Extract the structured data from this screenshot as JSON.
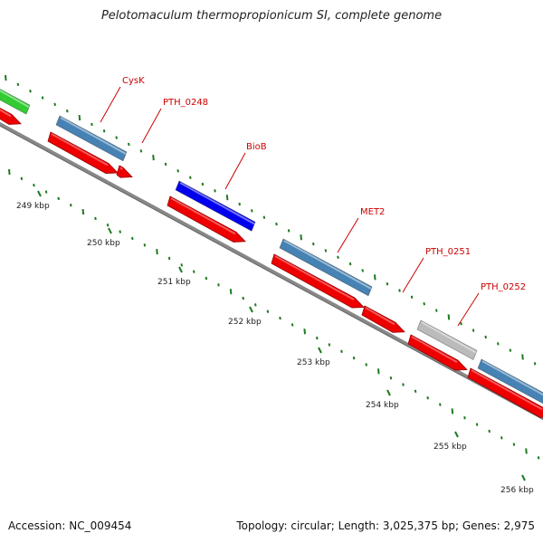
{
  "header": {
    "title": "Pelotomaculum thermopropionicum SI, complete genome"
  },
  "footer": {
    "accession": "Accession: NC_009454",
    "summary": "Topology: circular; Length: 3,025,375 bp; Genes: 2,975"
  },
  "ticks": [
    "249 kbp",
    "250 kbp",
    "251 kbp",
    "252 kbp",
    "253 kbp",
    "254 kbp",
    "255 kbp",
    "256 kbp"
  ],
  "genes": [
    {
      "label": "CysK",
      "color": "#cc0000"
    },
    {
      "label": "PTH_0248",
      "color": "#cc0000"
    },
    {
      "label": "BioB",
      "color": "#cc0000"
    },
    {
      "label": "MET2",
      "color": "#cc0000"
    },
    {
      "label": "PTH_0251",
      "color": "#cc0000"
    },
    {
      "label": "PTH_0252",
      "color": "#cc0000"
    }
  ],
  "colors": {
    "green_feature": "#33cc33",
    "steel_feature": "#4682b4",
    "blue_feature": "#0000ee",
    "gray_feature": "#bbbbbb",
    "red_cds": "#ee0000",
    "backbone": "#888888",
    "tick_mark": "#1f7a1f",
    "label_color": "#cc0000"
  }
}
